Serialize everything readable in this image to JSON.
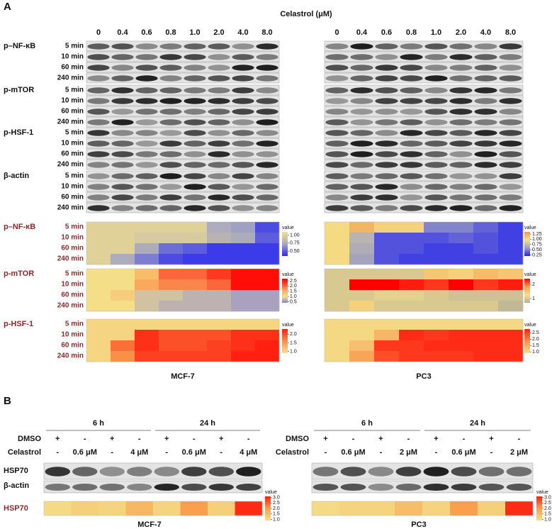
{
  "panel_a": {
    "label": "A",
    "treatment": "Celastrol (μM)",
    "concentrations": [
      "0",
      "0.4",
      "0.6",
      "0.8",
      "1.0",
      "2.0",
      "4.0",
      "8.0"
    ],
    "times": [
      "5 min",
      "10 min",
      "60 min",
      "240 min"
    ],
    "blots": [
      "p–NF-κB",
      "p-mTOR",
      "p-HSF-1",
      "β-actin"
    ],
    "colorbar_title": "value",
    "cell_lines": [
      "MCF-7",
      "PC3"
    ],
    "heatmaps": [
      {
        "label": "p–NF-κB",
        "mcf7": {
          "lim": [
            0.35,
            1.1
          ],
          "colors": [
            "#2a2af0",
            "#a8a8c0",
            "#f5e08a"
          ],
          "ticks": [
            {
              "value": 1.0,
              "label": "1.00"
            },
            {
              "value": 0.75,
              "label": "0.75"
            },
            {
              "value": 0.5,
              "label": "0.50"
            }
          ],
          "values": [
            [
              1,
              1,
              1,
              1,
              1,
              0.75,
              0.7,
              0.45
            ],
            [
              1,
              1,
              0.95,
              0.95,
              0.95,
              0.8,
              0.75,
              0.5
            ],
            [
              1,
              1,
              0.75,
              0.55,
              0.5,
              0.4,
              0.4,
              0.4
            ],
            [
              1,
              0.75,
              0.6,
              0.45,
              0.4,
              0.4,
              0.4,
              0.4
            ]
          ]
        },
        "pc3": {
          "lim": [
            0.2,
            1.35
          ],
          "colors": [
            "#2020f0",
            "#a0a0c0",
            "#f5e08a",
            "#f39a4a"
          ],
          "ticks": [
            {
              "value": 1.25,
              "label": "1.25"
            },
            {
              "value": 1.0,
              "label": "1.00"
            },
            {
              "value": 0.75,
              "label": "0.75"
            },
            {
              "value": 0.5,
              "label": "0.50"
            },
            {
              "value": 0.25,
              "label": "0.25"
            }
          ],
          "values": [
            [
              1,
              1.2,
              1.05,
              1.05,
              0.5,
              0.5,
              0.4,
              0.3
            ],
            [
              1,
              0.7,
              0.35,
              0.35,
              0.35,
              0.4,
              0.35,
              0.3
            ],
            [
              1,
              0.65,
              0.35,
              0.35,
              0.3,
              0.3,
              0.35,
              0.3
            ],
            [
              1,
              0.6,
              0.35,
              0.3,
              0.3,
              0.3,
              0.3,
              0.3
            ]
          ]
        }
      },
      {
        "label": "p-mTOR",
        "mcf7": {
          "lim": [
            0.4,
            2.7
          ],
          "colors": [
            "#8080d8",
            "#f5e08a",
            "#f8b060",
            "#ff5030",
            "#ff0000"
          ],
          "ticks": [
            {
              "value": 2.5,
              "label": "2.5"
            },
            {
              "value": 2.0,
              "label": "2.0"
            },
            {
              "value": 1.5,
              "label": "1.5"
            },
            {
              "value": 1.0,
              "label": "1.0"
            },
            {
              "value": 0.5,
              "label": "0.5"
            }
          ],
          "values": [
            [
              1,
              1,
              1.4,
              2.0,
              2.0,
              2.3,
              2.6,
              2.6
            ],
            [
              1,
              1,
              1.6,
              1.8,
              1.8,
              2.0,
              2.6,
              2.6
            ],
            [
              1,
              1.2,
              0.8,
              0.8,
              0.7,
              0.7,
              0.6,
              0.6
            ],
            [
              1,
              1,
              0.8,
              0.7,
              0.7,
              0.7,
              0.6,
              0.6
            ]
          ]
        },
        "pc3": {
          "lim": [
            0.7,
            2.4
          ],
          "colors": [
            "#b8b098",
            "#f5e08a",
            "#f8a050",
            "#ff0000"
          ],
          "ticks": [
            2,
            1
          ],
          "values": [
            [
              1,
              1,
              1,
              1,
              1.5,
              1.4,
              1.6,
              1.5
            ],
            [
              1,
              2.4,
              2.4,
              2.3,
              2.2,
              2.4,
              2.2,
              2.3
            ],
            [
              1,
              1,
              1.1,
              1.1,
              1,
              0.9,
              0.9,
              0.9
            ],
            [
              1,
              1.4,
              1,
              1,
              1,
              1,
              1,
              0.8
            ]
          ]
        }
      },
      {
        "label": "p-HSF-1",
        "mcf7": {
          "lim": [
            0.9,
            2.3
          ],
          "colors": [
            "#f5e08a",
            "#f89048",
            "#ff2010"
          ],
          "ticks": [
            {
              "value": 2.0,
              "label": "2.0"
            },
            {
              "value": 1.5,
              "label": "1.5"
            },
            {
              "value": 1.0,
              "label": "1.0"
            }
          ],
          "values": [
            [
              1,
              1,
              1,
              1,
              1,
              1,
              1,
              1
            ],
            [
              1,
              1,
              2.2,
              2.0,
              2.0,
              2.0,
              2.2,
              2.2
            ],
            [
              1,
              1.8,
              2.2,
              2.0,
              2.0,
              2.1,
              2.2,
              2.3
            ],
            [
              1,
              1.6,
              2.1,
              2.1,
              2.1,
              2.1,
              2.3,
              2.3
            ]
          ]
        },
        "pc3": {
          "lim": [
            0.9,
            2.8
          ],
          "colors": [
            "#f5e08a",
            "#f89048",
            "#ff2010"
          ],
          "ticks": [
            {
              "value": 2.5,
              "label": "2.5"
            },
            {
              "value": 2.0,
              "label": "2.0"
            },
            {
              "value": 1.5,
              "label": "1.5"
            },
            {
              "value": 1.0,
              "label": "1.0"
            }
          ],
          "values": [
            [
              1,
              1,
              1,
              1,
              1,
              1,
              1,
              1
            ],
            [
              1,
              1,
              1.4,
              2.7,
              2.6,
              2.7,
              2.7,
              2.7
            ],
            [
              1,
              1.3,
              2.6,
              2.6,
              2.7,
              2.7,
              2.7,
              2.7
            ],
            [
              1,
              1.6,
              2.4,
              2.6,
              2.6,
              2.6,
              2.7,
              2.7
            ]
          ]
        }
      }
    ]
  },
  "panel_b": {
    "label": "B",
    "row_labels": {
      "dmso": "DMSO",
      "celastrol": "Celastrol"
    },
    "blots": [
      "HSP70",
      "β-actin"
    ],
    "heatmap_label": "HSP70",
    "colorbar_title": "value",
    "groups": [
      {
        "cell_line": "MCF-7",
        "times": [
          "6 h",
          "24 h"
        ],
        "dmso": [
          "+",
          "-",
          "+",
          "-",
          "+",
          "-",
          "+",
          "-"
        ],
        "celastrol": [
          "-",
          "0.6 μM",
          "-",
          "4 μM",
          "-",
          "0.6 μM",
          "-",
          "4 μM"
        ],
        "heatmap": {
          "lim": [
            0.9,
            3.1
          ],
          "colors": [
            "#f5e08a",
            "#f8a050",
            "#ff2010"
          ],
          "ticks": [
            {
              "value": 3.0,
              "label": "3.0"
            },
            {
              "value": 2.5,
              "label": "2.5"
            },
            {
              "value": 2.0,
              "label": "2.0"
            },
            {
              "value": 1.5,
              "label": "1.5"
            },
            {
              "value": 1.0,
              "label": "1.0"
            }
          ],
          "values": [
            1,
            1.2,
            1.1,
            1.6,
            1.1,
            2.0,
            1.2,
            3.0
          ]
        }
      },
      {
        "cell_line": "PC3",
        "times": [
          "6 h",
          "24 h"
        ],
        "dmso": [
          "+",
          "-",
          "+",
          "-",
          "+",
          "-",
          "+",
          "-"
        ],
        "celastrol": [
          "-",
          "0.6 μM",
          "-",
          "2 μM",
          "-",
          "0.6 μM",
          "-",
          "2 μM"
        ],
        "heatmap": {
          "lim": [
            0.9,
            3.1
          ],
          "colors": [
            "#f5e08a",
            "#f8a050",
            "#ff2010"
          ],
          "ticks": [
            {
              "value": 3.0,
              "label": "3.0"
            },
            {
              "value": 2.5,
              "label": "2.5"
            },
            {
              "value": 2.0,
              "label": "2.0"
            },
            {
              "value": 1.5,
              "label": "1.5"
            },
            {
              "value": 1.0,
              "label": "1.0"
            }
          ],
          "values": [
            1,
            1.1,
            1.1,
            1.5,
            1.1,
            2.0,
            1.2,
            3.0
          ]
        }
      }
    ]
  }
}
